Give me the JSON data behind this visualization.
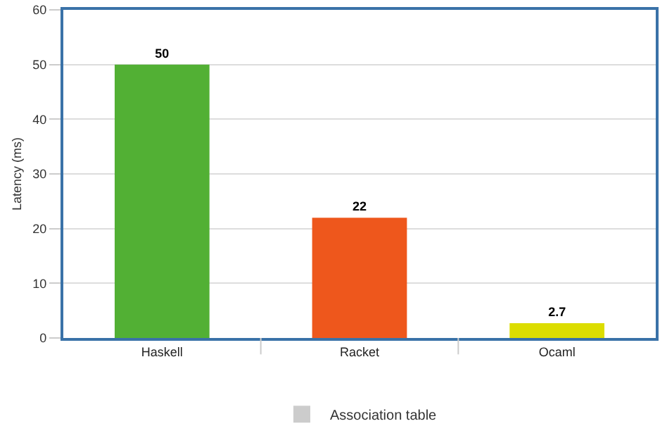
{
  "chart_data": {
    "type": "bar",
    "ylabel": "Latency (ms)",
    "categories": [
      "Haskell",
      "Racket",
      "Ocaml"
    ],
    "series": [
      {
        "name": "Association table",
        "color": "#cccccc",
        "colors": [
          "#52b034",
          "#ee571c",
          "#dcdd00"
        ],
        "values": [
          50,
          22,
          2.7
        ]
      }
    ],
    "ylim": [
      0,
      60
    ],
    "yticks": [
      0,
      10,
      20,
      30,
      40,
      50,
      60
    ],
    "grid": "y",
    "legend": "bottom",
    "data_labels": true
  }
}
